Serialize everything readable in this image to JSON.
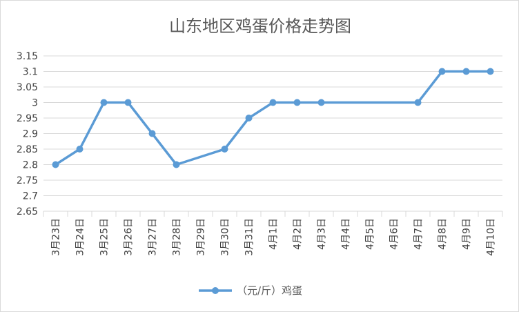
{
  "chart_data": {
    "type": "line",
    "title": "山东地区鸡蛋价格走势图",
    "xlabel": "",
    "ylabel": "",
    "categories": [
      "3月23日",
      "3月24日",
      "3月25日",
      "3月26日",
      "3月27日",
      "3月28日",
      "3月29日",
      "3月30日",
      "3月31日",
      "4月1日",
      "4月2日",
      "4月3日",
      "4月4日",
      "4月5日",
      "4月6日",
      "4月7日",
      "4月8日",
      "4月9日",
      "4月10日"
    ],
    "series": [
      {
        "name": "（元/斤）鸡蛋",
        "values": [
          2.8,
          2.85,
          3.0,
          3.0,
          2.9,
          2.8,
          null,
          2.85,
          2.95,
          3.0,
          3.0,
          3.0,
          null,
          null,
          null,
          3.0,
          3.1,
          3.1,
          3.1
        ],
        "color": "#5b9bd5"
      }
    ],
    "ylim": [
      2.65,
      3.15
    ],
    "yticks": [
      2.65,
      2.7,
      2.75,
      2.8,
      2.85,
      2.9,
      2.95,
      3,
      3.05,
      3.1,
      3.15
    ],
    "ytick_labels": [
      "2.65",
      "2.7",
      "2.75",
      "2.8",
      "2.85",
      "2.9",
      "2.95",
      "3",
      "3.05",
      "3.1",
      "3.15"
    ],
    "grid": true,
    "legend_position": "bottom",
    "gaps": "connect"
  }
}
